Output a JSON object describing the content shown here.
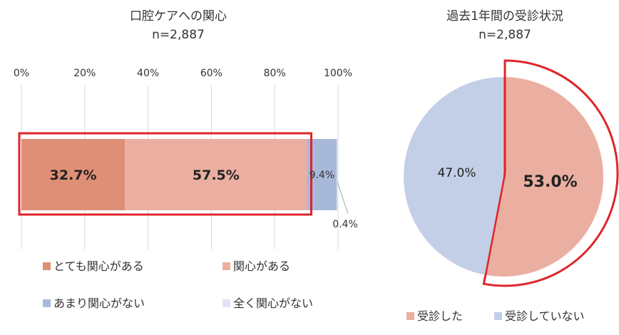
{
  "chart_data": [
    {
      "type": "bar",
      "orientation": "horizontal",
      "stacked": "percent",
      "title": "口腔ケアへの関心",
      "subtitle": "n=2,887",
      "xlim": [
        0,
        100
      ],
      "xticks": [
        "0%",
        "20%",
        "40%",
        "60%",
        "80%",
        "100%"
      ],
      "grid": true,
      "legend_position": "bottom",
      "series": [
        {
          "name": "とても関心がある",
          "values": [
            32.7
          ],
          "label": "32.7%",
          "color": "#df8f76",
          "label_bold": true
        },
        {
          "name": "関心がある",
          "values": [
            57.5
          ],
          "label": "57.5%",
          "color": "#ebafa1",
          "label_bold": true
        },
        {
          "name": "あまり関心がない",
          "values": [
            9.4
          ],
          "label": "9.4%",
          "color": "#a8b8d9",
          "label_bold": false
        },
        {
          "name": "全く関心がない",
          "values": [
            0.4
          ],
          "label": "0.4%",
          "color": "#dfe5f1",
          "label_bold": false
        }
      ],
      "highlight_color": "#e0242b"
    },
    {
      "type": "pie",
      "title": "過去1年間の受診状況",
      "subtitle": "n=2,887",
      "legend_position": "bottom",
      "slices": [
        {
          "name": "受診した",
          "value": 53.0,
          "label": "53.0%",
          "color": "#ebafa1",
          "label_bold": true,
          "highlighted": true
        },
        {
          "name": "受診していない",
          "value": 47.0,
          "label": "47.0%",
          "color": "#c3cfe6",
          "label_bold": false,
          "highlighted": false
        }
      ],
      "highlight_color": "#e0242b"
    }
  ]
}
